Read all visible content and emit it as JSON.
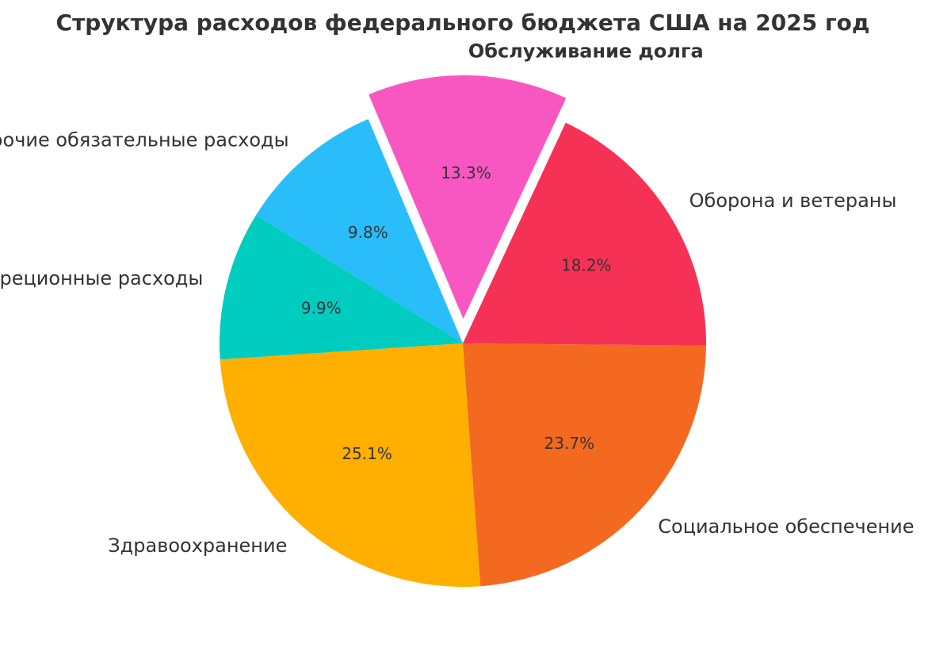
{
  "chart_data": {
    "type": "pie",
    "title": "Структура расходов федерального бюджета США на 2025 год",
    "slices": [
      {
        "label": "Обслуживание долга",
        "value": 13.3,
        "value_label": "13.3%",
        "color": "#F857C1",
        "exploded": true,
        "bold_label": true
      },
      {
        "label": "Прочие обязательные расходы",
        "value": 9.8,
        "value_label": "9.8%",
        "color": "#29BDFA",
        "exploded": false,
        "bold_label": false
      },
      {
        "label": "Дискреционные расходы",
        "value": 9.9,
        "value_label": "9.9%",
        "color": "#00CCC0",
        "exploded": false,
        "bold_label": false
      },
      {
        "label": "Здравоохранение",
        "value": 25.1,
        "value_label": "25.1%",
        "color": "#FFAF00",
        "exploded": false,
        "bold_label": false
      },
      {
        "label": "Социальное обеспечение",
        "value": 23.7,
        "value_label": "23.7%",
        "color": "#F46920",
        "exploded": false,
        "bold_label": false
      },
      {
        "label": "Оборона и ветераны",
        "value": 18.2,
        "value_label": "18.2%",
        "color": "#F53255",
        "exploded": false,
        "bold_label": false
      }
    ],
    "legend": "none"
  }
}
